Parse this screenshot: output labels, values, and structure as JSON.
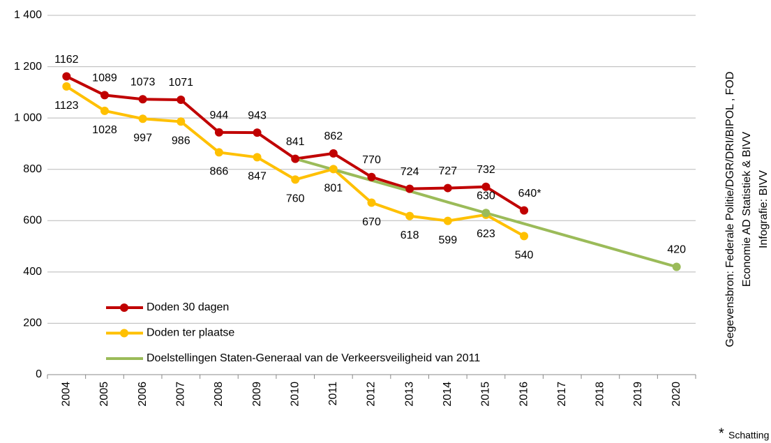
{
  "chart_data": {
    "type": "line",
    "categories": [
      "2004",
      "2005",
      "2006",
      "2007",
      "2008",
      "2009",
      "2010",
      "2011",
      "2012",
      "2013",
      "2014",
      "2015",
      "2016",
      "2017",
      "2018",
      "2019",
      "2020"
    ],
    "series": [
      {
        "name": "Doden 30 dagen",
        "color": "#c00000",
        "values": [
          1162,
          1089,
          1073,
          1071,
          944,
          943,
          841,
          862,
          770,
          724,
          727,
          732,
          640,
          null,
          null,
          null,
          null
        ],
        "value_labels": [
          "1162",
          "1089",
          "1073",
          "1071",
          "944",
          "943",
          "841",
          "862",
          "770",
          "724",
          "727",
          "732",
          "640*",
          null,
          null,
          null,
          null
        ]
      },
      {
        "name": "Doden ter plaatse",
        "color": "#ffc000",
        "values": [
          1123,
          1028,
          997,
          986,
          866,
          847,
          760,
          801,
          670,
          618,
          599,
          623,
          540,
          null,
          null,
          null,
          null
        ],
        "value_labels": [
          "1123",
          "1028",
          "997",
          "986",
          "866",
          "847",
          "760",
          "801",
          "670",
          "618",
          "599",
          "623",
          "540",
          null,
          null,
          null,
          null
        ]
      },
      {
        "name": "Doelstellingen Staten-Generaal van de Verkeersveiligheid van 2011",
        "color": "#9bbb59",
        "values": [
          null,
          null,
          null,
          null,
          null,
          null,
          841,
          799,
          757,
          715,
          672,
          630,
          588,
          546,
          504,
          462,
          420
        ],
        "value_labels": [
          null,
          null,
          null,
          null,
          null,
          null,
          null,
          null,
          null,
          null,
          null,
          "630",
          null,
          null,
          null,
          null,
          "420"
        ]
      }
    ],
    "ylim": [
      0,
      1400
    ],
    "yticks": [
      0,
      200,
      400,
      600,
      800,
      {
        "value": 1000,
        "label": "1 000"
      },
      {
        "value": 1200,
        "label": "1 200"
      },
      {
        "value": 1400,
        "label": "1 400"
      }
    ],
    "grid": true,
    "legend": "lower left",
    "source": [
      "Gegevensbron: Federale Politie/DGR/DRI/BIPOL , FOD",
      "Economie AD Statistiek & BIVV",
      "Infografie: BIVV"
    ],
    "footnote": {
      "mark": "*",
      "text": "Schatting"
    }
  }
}
